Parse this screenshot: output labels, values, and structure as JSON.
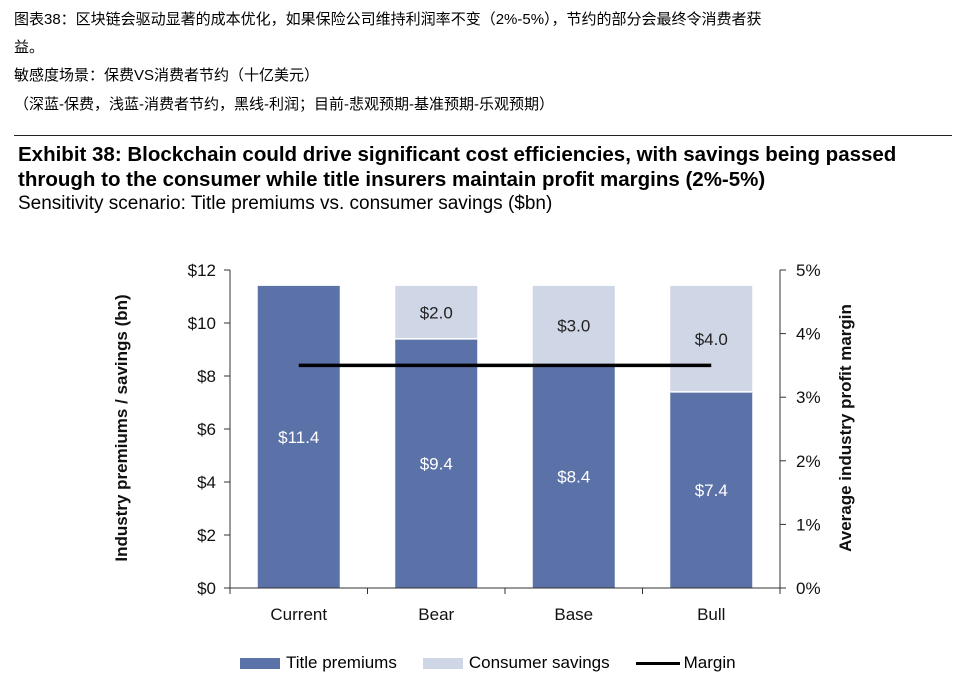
{
  "cn": {
    "line1": "图表38：区块链会驱动显著的成本优化，如果保险公司维持利润率不变（2%-5%），节约的部分会最终令消费者获",
    "line2": "益。",
    "line3": "敏感度场景：保费VS消费者节约（十亿美元）",
    "line4": "（深蓝-保费，浅蓝-消费者节约，黑线-利润；目前-悲观预期-基准预期-乐观预期）"
  },
  "exhibit": {
    "title": "Exhibit 38: Blockchain could drive significant cost efficiencies, with savings being passed through to the consumer while title insurers maintain profit margins (2%-5%)",
    "subtitle": "Sensitivity scenario: Title premiums vs. consumer savings ($bn)"
  },
  "colors": {
    "premiums": "#5b72a9",
    "savings": "#cfd6e6",
    "margin": "#000000"
  },
  "chart_data": {
    "type": "bar",
    "stacked": true,
    "categories": [
      "Current",
      "Bear",
      "Base",
      "Bull"
    ],
    "series": [
      {
        "name": "Title premiums",
        "values": [
          11.4,
          9.4,
          8.4,
          7.4
        ],
        "labels": [
          "$11.4",
          "$9.4",
          "$8.4",
          "$7.4"
        ]
      },
      {
        "name": "Consumer savings",
        "values": [
          0,
          2.0,
          3.0,
          4.0
        ],
        "labels": [
          "",
          "$2.0",
          "$3.0",
          "$4.0"
        ]
      },
      {
        "name": "Margin",
        "axis": "right",
        "type": "line",
        "values": [
          3.5,
          3.5,
          3.5,
          3.5
        ]
      }
    ],
    "ylabel": "Industry premiums / savings (bn)",
    "ylabel_right": "Average industry profit margin",
    "ylim": [
      0,
      12
    ],
    "ylim_right": [
      0,
      5
    ],
    "yticks": [
      "$0",
      "$2",
      "$4",
      "$6",
      "$8",
      "$10",
      "$12"
    ],
    "yticks_right": [
      "0%",
      "1%",
      "2%",
      "3%",
      "4%",
      "5%"
    ],
    "legend": [
      "Title premiums",
      "Consumer savings",
      "Margin"
    ],
    "legend_position": "bottom",
    "grid": false
  }
}
